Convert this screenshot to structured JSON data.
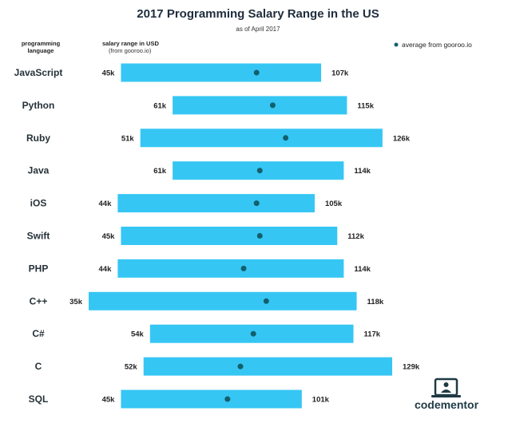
{
  "chart_data": {
    "type": "bar",
    "title": "2017 Programming Salary Range in the US",
    "subtitle": "as of April 2017",
    "column_header_language": [
      "programming",
      "language"
    ],
    "column_header_range": [
      "salary range in USD",
      "(from gooroo.io)"
    ],
    "legend": "average from gooroo.io",
    "xlim": [
      35,
      129
    ],
    "categories": [
      "JavaScript",
      "Python",
      "Ruby",
      "Java",
      "iOS",
      "Swift",
      "PHP",
      "C++",
      "C#",
      "C",
      "SQL"
    ],
    "series": [
      {
        "name": "min",
        "values": [
          45,
          61,
          51,
          61,
          44,
          45,
          44,
          35,
          54,
          52,
          45
        ],
        "labels": [
          "45k",
          "61k",
          "51k",
          "61k",
          "44k",
          "45k",
          "44k",
          "35k",
          "54k",
          "52k",
          "45k"
        ]
      },
      {
        "name": "max",
        "values": [
          107,
          115,
          126,
          114,
          105,
          112,
          114,
          118,
          117,
          129,
          101
        ],
        "labels": [
          "107k",
          "115k",
          "126k",
          "114k",
          "105k",
          "112k",
          "114k",
          "118k",
          "117k",
          "129k",
          "101k"
        ]
      },
      {
        "name": "average from gooroo.io",
        "values": [
          87,
          92,
          96,
          88,
          87,
          88,
          83,
          90,
          86,
          82,
          78
        ]
      }
    ]
  },
  "brand": {
    "name": "codementor",
    "icon": "codementor-logo-icon",
    "color": "#1f3a45"
  },
  "colors": {
    "bar": "#36c6f4",
    "dot": "#12606d"
  }
}
